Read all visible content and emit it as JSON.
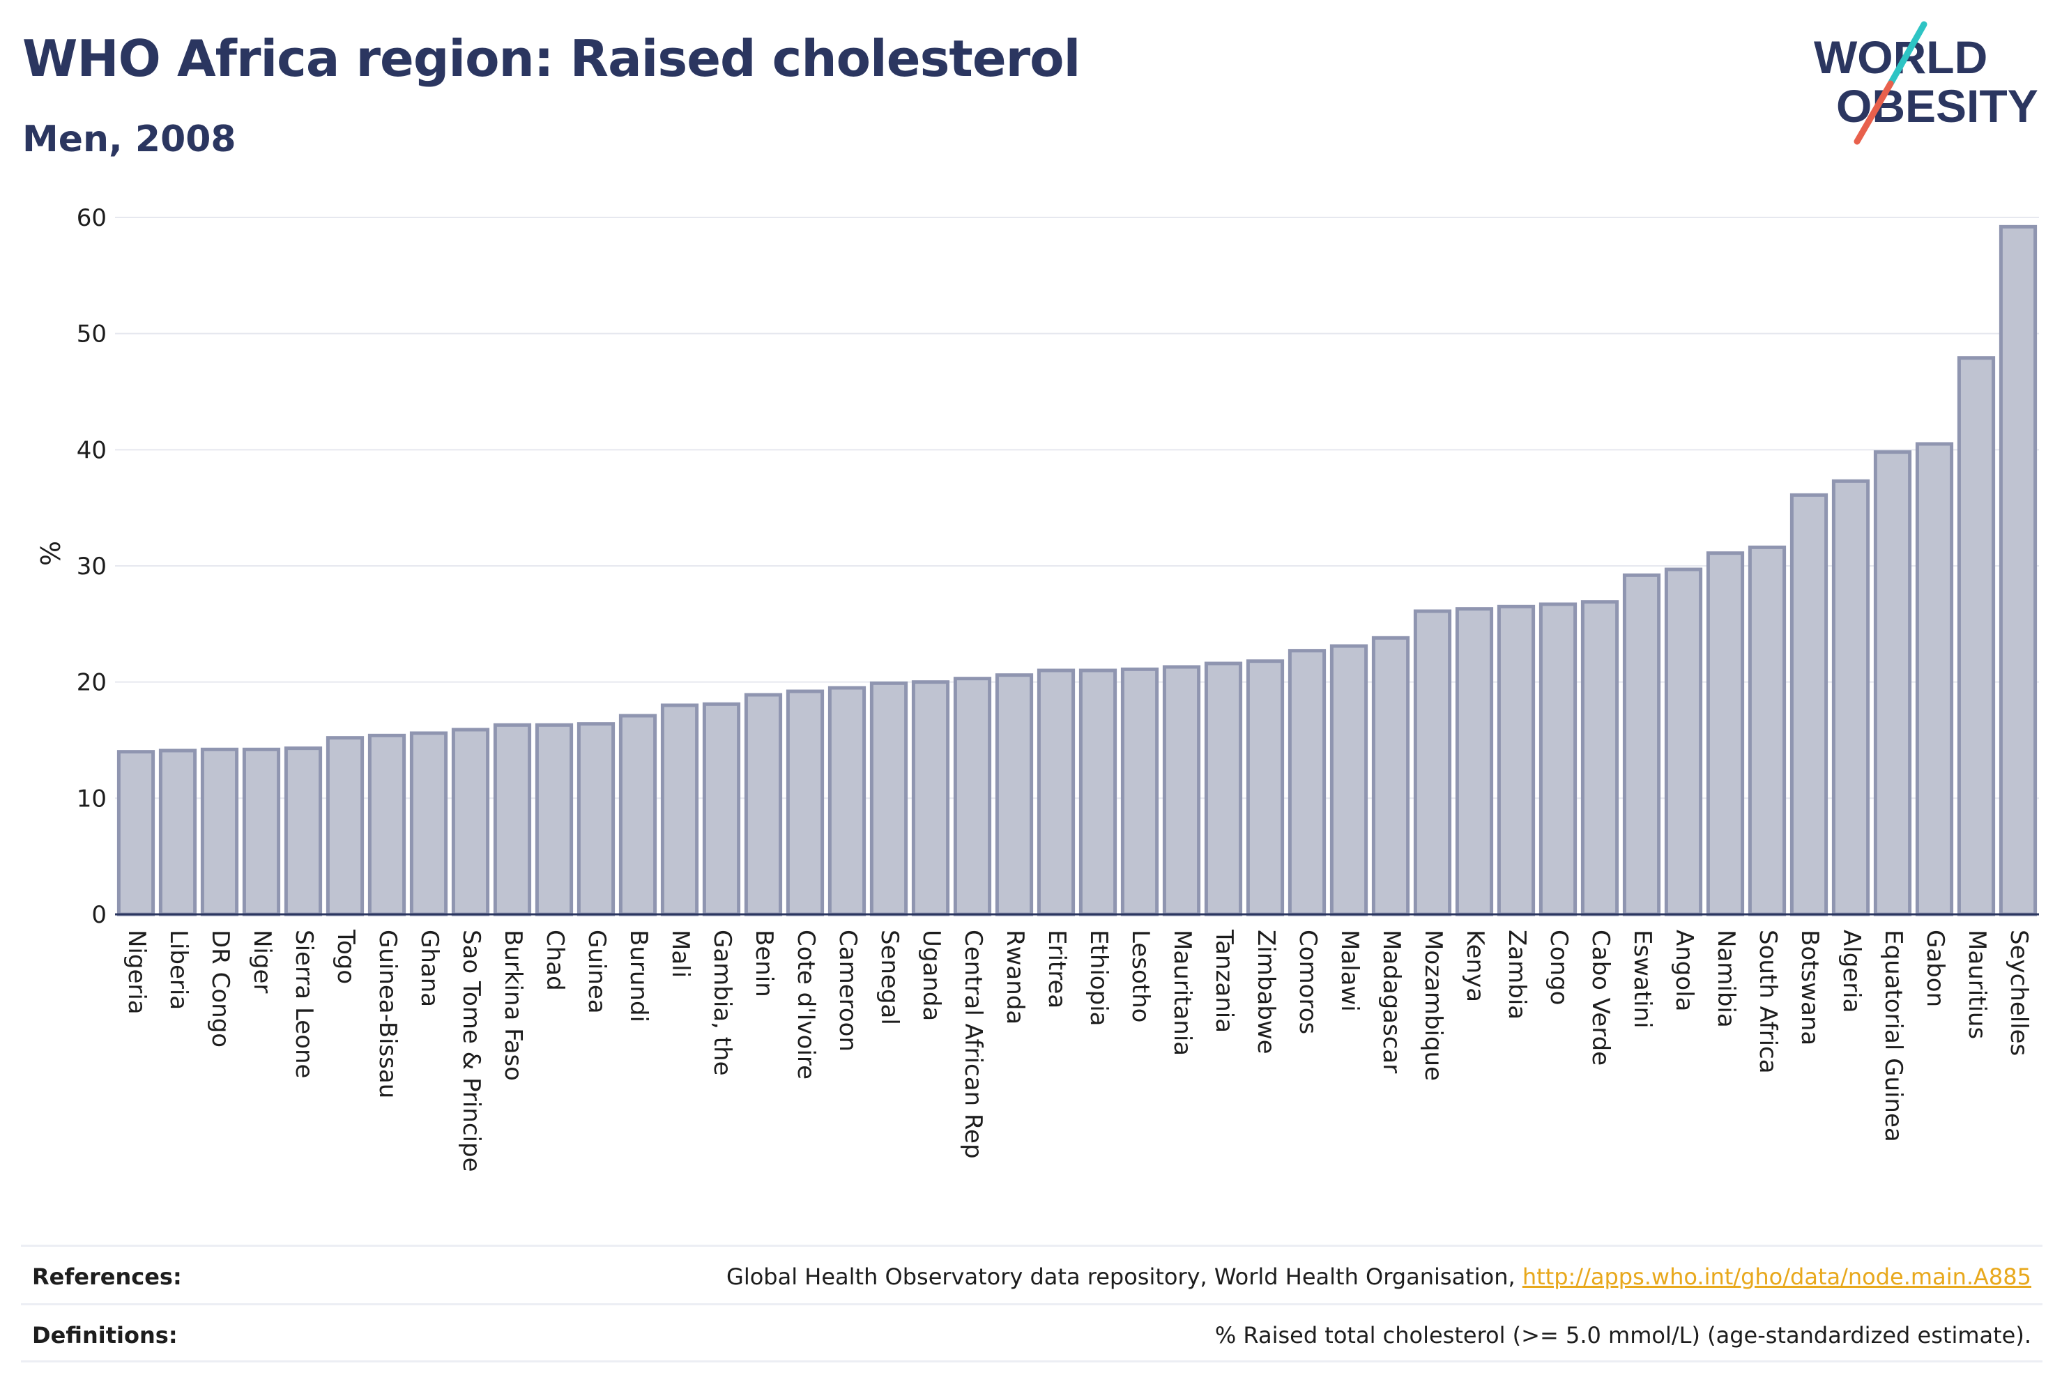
{
  "header": {
    "title": "WHO Africa region: Raised cholesterol",
    "subtitle": "Men, 2008"
  },
  "logo": {
    "line1": "WORLD",
    "line2": "OBESITY",
    "slash_color_top": "#2ec4c4",
    "slash_color_bottom": "#e8604c"
  },
  "chart_data": {
    "type": "bar",
    "title": "WHO Africa region: Raised cholesterol",
    "subtitle": "Men, 2008",
    "xlabel": "",
    "ylabel": "%",
    "ylim": [
      0,
      60
    ],
    "yticks": [
      0,
      10,
      20,
      30,
      40,
      50,
      60
    ],
    "grid": true,
    "bar_color": "#bfc3d1",
    "bar_edge_color": "#8f95b0",
    "categories": [
      "Nigeria",
      "Liberia",
      "DR Congo",
      "Niger",
      "Sierra Leone",
      "Togo",
      "Guinea-Bissau",
      "Ghana",
      "Sao Tome & Principe",
      "Burkina Faso",
      "Chad",
      "Guinea",
      "Burundi",
      "Mali",
      "Gambia, the",
      "Benin",
      "Cote d'Ivoire",
      "Cameroon",
      "Senegal",
      "Uganda",
      "Central African Rep",
      "Rwanda",
      "Eritrea",
      "Ethiopia",
      "Lesotho",
      "Mauritania",
      "Tanzania",
      "Zimbabwe",
      "Comoros",
      "Malawi",
      "Madagascar",
      "Mozambique",
      "Kenya",
      "Zambia",
      "Congo",
      "Cabo Verde",
      "Eswatini",
      "Angola",
      "Namibia",
      "South Africa",
      "Botswana",
      "Algeria",
      "Equatorial Guinea",
      "Gabon",
      "Mauritius",
      "Seychelles"
    ],
    "values": [
      14.0,
      14.1,
      14.2,
      14.2,
      14.3,
      15.2,
      15.4,
      15.6,
      15.9,
      16.3,
      16.3,
      16.4,
      17.1,
      18.0,
      18.1,
      18.9,
      19.2,
      19.5,
      19.9,
      20.0,
      20.3,
      20.6,
      21.0,
      21.0,
      21.1,
      21.3,
      21.6,
      21.8,
      22.7,
      23.1,
      23.8,
      26.1,
      26.3,
      26.5,
      26.7,
      26.9,
      29.2,
      29.7,
      31.1,
      31.6,
      36.1,
      37.3,
      39.8,
      40.5,
      47.9,
      59.2
    ]
  },
  "footer": {
    "references_label": "References:",
    "references_text": "Global Health Observatory data repository, World Health Organisation, ",
    "references_link": "http://apps.who.int/gho/data/node.main.A885",
    "definitions_label": "Definitions:",
    "definitions_text": "% Raised total cholesterol (>= 5.0 mmol/L) (age-standardized estimate)."
  }
}
